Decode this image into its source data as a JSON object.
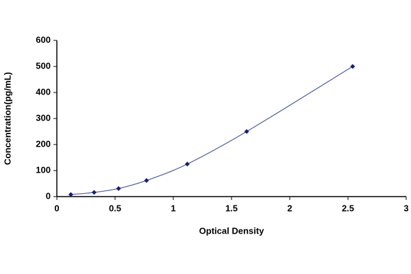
{
  "chart_data": {
    "type": "scatter",
    "x_label": "Optical Density",
    "y_label": "Concentration(pg/mL)",
    "x": [
      0.12,
      0.32,
      0.53,
      0.77,
      1.12,
      1.63,
      2.54
    ],
    "values": [
      8,
      16,
      31,
      62,
      125,
      250,
      500
    ],
    "color": "#1a1f6e",
    "line_color": "#4a5a9a",
    "smooth": true,
    "xlim": [
      0,
      3
    ],
    "xticks": [
      0,
      0.5,
      1,
      1.5,
      2,
      2.5,
      3
    ],
    "ylim": [
      0,
      600
    ],
    "yticks": [
      0,
      100,
      200,
      300,
      400,
      500,
      600
    ],
    "grid": false
  }
}
